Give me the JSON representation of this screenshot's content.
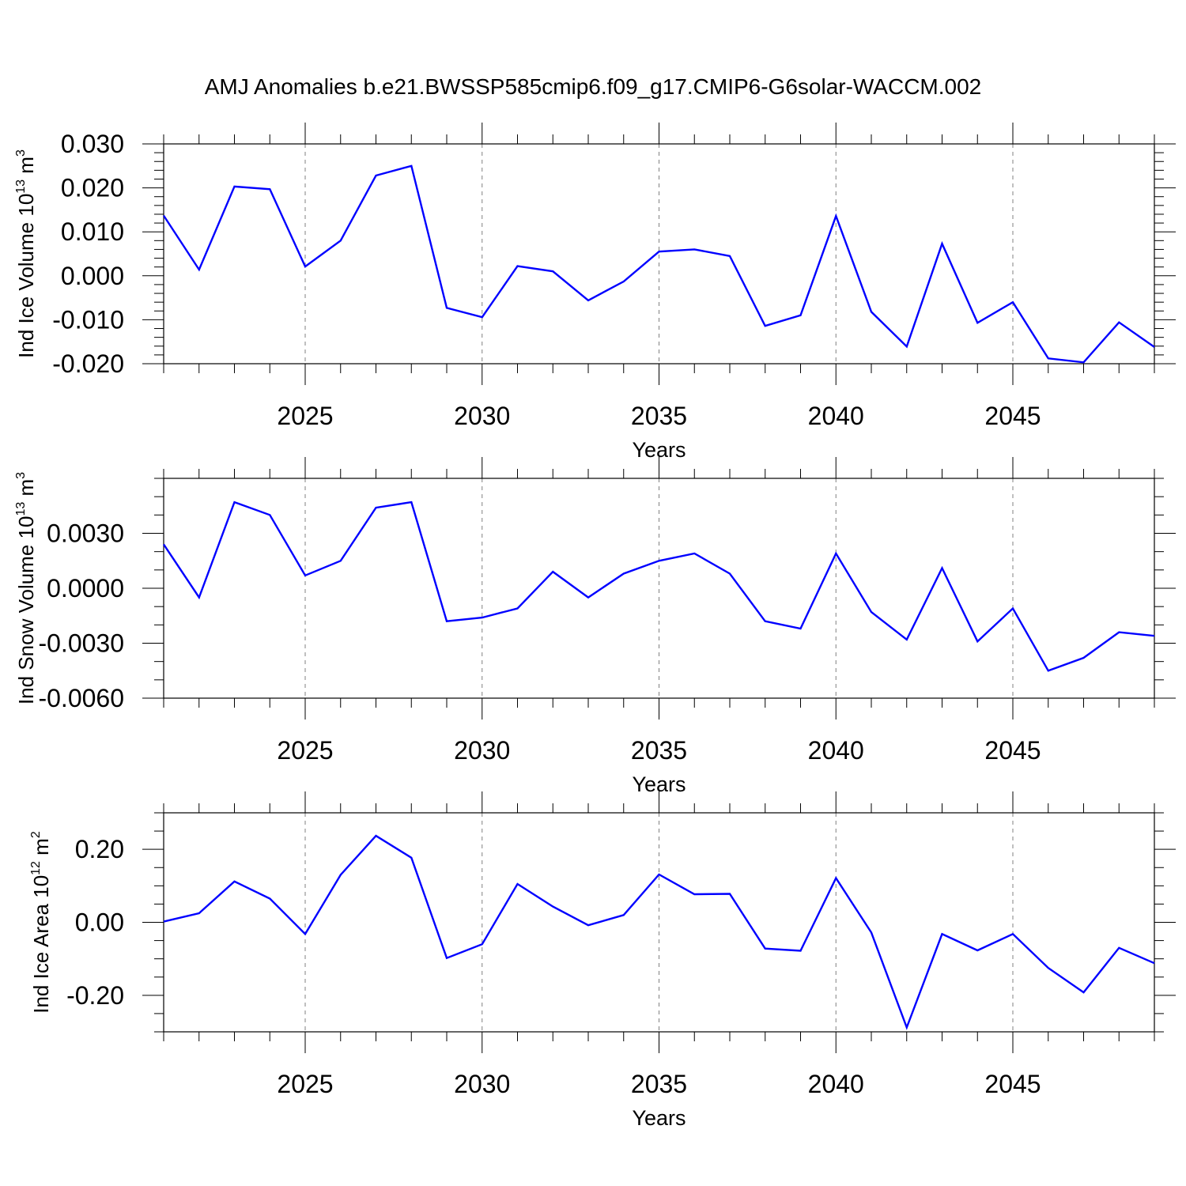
{
  "title": "AMJ Anomalies b.e21.BWSSP585cmip6.f09_g17.CMIP6-G6solar-WACCM.002",
  "colors": {
    "line": "#0000ff",
    "axis": "#000000",
    "grid": "#808080"
  },
  "chart_data": [
    {
      "type": "line",
      "xlabel": "Years",
      "ylabel": {
        "text": "Ind Ice Volume 10",
        "sup": "13",
        "unit": " m",
        "unit_sup": "3"
      },
      "xlim": [
        2021,
        2049
      ],
      "ylim": [
        -0.02,
        0.03
      ],
      "x_ticks": [
        2025,
        2030,
        2035,
        2040,
        2045
      ],
      "y_ticks": [
        {
          "v": -0.02,
          "label": "-0.020"
        },
        {
          "v": -0.01,
          "label": "-0.010"
        },
        {
          "v": 0.0,
          "label": "0.000"
        },
        {
          "v": 0.01,
          "label": "0.010"
        },
        {
          "v": 0.02,
          "label": "0.020"
        },
        {
          "v": 0.03,
          "label": "0.030"
        }
      ],
      "y_minor_step": 0.002,
      "grid": "vertical dashed at major x ticks",
      "x": [
        2021,
        2022,
        2023,
        2024,
        2025,
        2026,
        2027,
        2028,
        2029,
        2030,
        2031,
        2032,
        2033,
        2034,
        2035,
        2036,
        2037,
        2038,
        2039,
        2040,
        2041,
        2042,
        2043,
        2044,
        2045,
        2046,
        2047,
        2048,
        2049
      ],
      "values": [
        0.0137,
        0.0014,
        0.0203,
        0.0197,
        0.0021,
        0.008,
        0.0228,
        0.025,
        -0.0073,
        -0.0094,
        0.0022,
        0.001,
        -0.0056,
        -0.0013,
        0.0055,
        0.006,
        0.0045,
        -0.0114,
        -0.009,
        0.0136,
        -0.0082,
        -0.0161,
        0.0073,
        -0.0107,
        -0.006,
        -0.0188,
        -0.0197,
        -0.0106,
        -0.0162
      ]
    },
    {
      "type": "line",
      "xlabel": "Years",
      "ylabel": {
        "text": "Ind Snow Volume 10",
        "sup": "13",
        "unit": " m",
        "unit_sup": "3"
      },
      "xlim": [
        2021,
        2049
      ],
      "ylim": [
        -0.006,
        0.006
      ],
      "x_ticks": [
        2025,
        2030,
        2035,
        2040,
        2045
      ],
      "y_ticks": [
        {
          "v": -0.006,
          "label": "-0.0060"
        },
        {
          "v": -0.003,
          "label": "-0.0030"
        },
        {
          "v": 0.0,
          "label": "0.0000"
        },
        {
          "v": 0.003,
          "label": "0.0030"
        }
      ],
      "y_minor_step": 0.001,
      "grid": "vertical dashed at major x ticks",
      "x": [
        2021,
        2022,
        2023,
        2024,
        2025,
        2026,
        2027,
        2028,
        2029,
        2030,
        2031,
        2032,
        2033,
        2034,
        2035,
        2036,
        2037,
        2038,
        2039,
        2040,
        2041,
        2042,
        2043,
        2044,
        2045,
        2046,
        2047,
        2048,
        2049
      ],
      "values": [
        0.0024,
        -0.0005,
        0.0047,
        0.004,
        0.0007,
        0.0015,
        0.0044,
        0.0047,
        -0.0018,
        -0.0016,
        -0.0011,
        0.0009,
        -0.0005,
        0.0008,
        0.0015,
        0.0019,
        0.0008,
        -0.0018,
        -0.0022,
        0.0019,
        -0.0013,
        -0.0028,
        0.0011,
        -0.0029,
        -0.0011,
        -0.0045,
        -0.0038,
        -0.0024,
        -0.0026
      ]
    },
    {
      "type": "line",
      "xlabel": "Years",
      "ylabel": {
        "text": "Ind Ice Area 10",
        "sup": "12",
        "unit": " m",
        "unit_sup": "2"
      },
      "xlim": [
        2021,
        2049
      ],
      "ylim": [
        -0.3,
        0.3
      ],
      "x_ticks": [
        2025,
        2030,
        2035,
        2040,
        2045
      ],
      "y_ticks": [
        {
          "v": -0.2,
          "label": "-0.20"
        },
        {
          "v": 0.0,
          "label": "0.00"
        },
        {
          "v": 0.2,
          "label": "0.20"
        }
      ],
      "y_minor_step": 0.05,
      "grid": "vertical dashed at major x ticks",
      "x": [
        2021,
        2022,
        2023,
        2024,
        2025,
        2026,
        2027,
        2028,
        2029,
        2030,
        2031,
        2032,
        2033,
        2034,
        2035,
        2036,
        2037,
        2038,
        2039,
        2040,
        2041,
        2042,
        2043,
        2044,
        2045,
        2046,
        2047,
        2048,
        2049
      ],
      "values": [
        0.002,
        0.025,
        0.112,
        0.065,
        -0.032,
        0.13,
        0.237,
        0.177,
        -0.098,
        -0.06,
        0.105,
        0.043,
        -0.008,
        0.02,
        0.131,
        0.077,
        0.078,
        -0.072,
        -0.078,
        0.121,
        -0.028,
        -0.288,
        -0.032,
        -0.077,
        -0.032,
        -0.125,
        -0.192,
        -0.07,
        -0.112
      ]
    }
  ]
}
